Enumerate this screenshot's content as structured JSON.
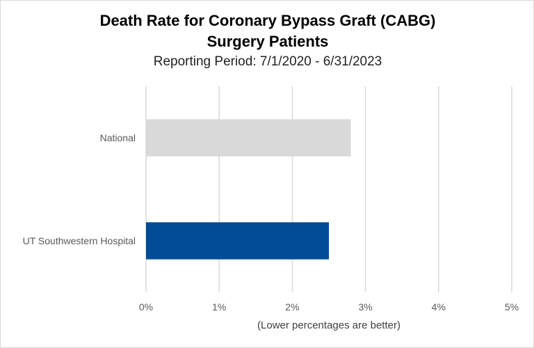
{
  "chart_data": {
    "type": "bar",
    "orientation": "horizontal",
    "title_line1": "Death Rate for Coronary Bypass Graft (CABG)",
    "title_line2": "Surgery Patients",
    "subtitle": "Reporting Period: 7/1/2020 - 6/31/2023",
    "categories": [
      "National",
      "UT Southwestern Hospital"
    ],
    "values": [
      2.8,
      2.5
    ],
    "colors": [
      "#d9d9d9",
      "#004c97"
    ],
    "xlabel": "(Lower percentages are better)",
    "xlim": [
      0,
      5
    ],
    "x_ticks": [
      "0%",
      "1%",
      "2%",
      "3%",
      "4%",
      "5%"
    ],
    "grid": "vertical",
    "gridline_color": "#d9d9d9"
  }
}
